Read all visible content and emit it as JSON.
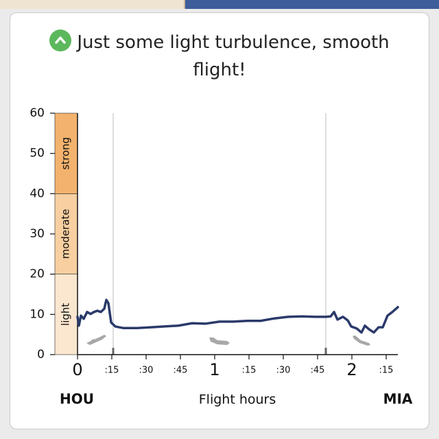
{
  "chart_data": {
    "type": "line",
    "title": "Just some light turbulence, smooth flight!",
    "x_label": "Flight hours",
    "origin_label": "HOU",
    "destination_label": "MIA",
    "x": [
      0,
      0.01,
      0.025,
      0.045,
      0.07,
      0.095,
      0.12,
      0.145,
      0.17,
      0.195,
      0.21,
      0.225,
      0.245,
      0.275,
      0.335,
      0.435,
      0.535,
      0.635,
      0.735,
      0.835,
      0.935,
      1.035,
      1.135,
      1.235,
      1.335,
      1.435,
      1.535,
      1.635,
      1.735,
      1.81,
      1.845,
      1.87,
      1.895,
      1.935,
      1.97,
      1.995,
      2.035,
      2.07,
      2.095,
      2.125,
      2.16,
      2.195,
      2.225,
      2.26,
      2.295,
      2.335
    ],
    "series": [
      {
        "name": "turbulence",
        "color": "#2b3a6b",
        "values": [
          9.4,
          7.2,
          9.7,
          8.9,
          10.6,
          10.1,
          10.6,
          10.9,
          10.6,
          11.4,
          13.6,
          12.8,
          8.0,
          7.0,
          6.6,
          6.6,
          6.8,
          7.0,
          7.2,
          7.8,
          7.7,
          8.2,
          8.2,
          8.4,
          8.4,
          9.0,
          9.4,
          9.5,
          9.4,
          9.4,
          9.5,
          10.6,
          8.7,
          9.4,
          8.5,
          7.0,
          6.5,
          5.5,
          7.2,
          6.3,
          5.5,
          6.8,
          6.8,
          9.7,
          10.6,
          11.8
        ]
      }
    ],
    "xlim": [
      0,
      2.335
    ],
    "ylim": [
      0,
      60
    ],
    "yticks": [
      0,
      10,
      20,
      30,
      40,
      50,
      60
    ],
    "xticks": [
      0,
      {
        "value": 0.25,
        "label": ":15"
      },
      {
        "value": 0.5,
        "label": ":30"
      },
      {
        "value": 0.75,
        "label": ":45"
      },
      1,
      {
        "value": 1.25,
        "label": ":15"
      },
      {
        "value": 1.5,
        "label": ":30"
      },
      {
        "value": 1.75,
        "label": ":45"
      },
      2,
      {
        "value": 2.25,
        "label": ":15"
      }
    ],
    "phase_lines": [
      0.26,
      1.81
    ],
    "bands": [
      {
        "name": "light",
        "from": 0,
        "to": 20,
        "color": "#fbe6cf"
      },
      {
        "name": "moderate",
        "from": 20,
        "to": 40,
        "color": "#f7cfa0"
      },
      {
        "name": "strong",
        "from": 40,
        "to": 60,
        "color": "#f3b36e"
      }
    ]
  }
}
